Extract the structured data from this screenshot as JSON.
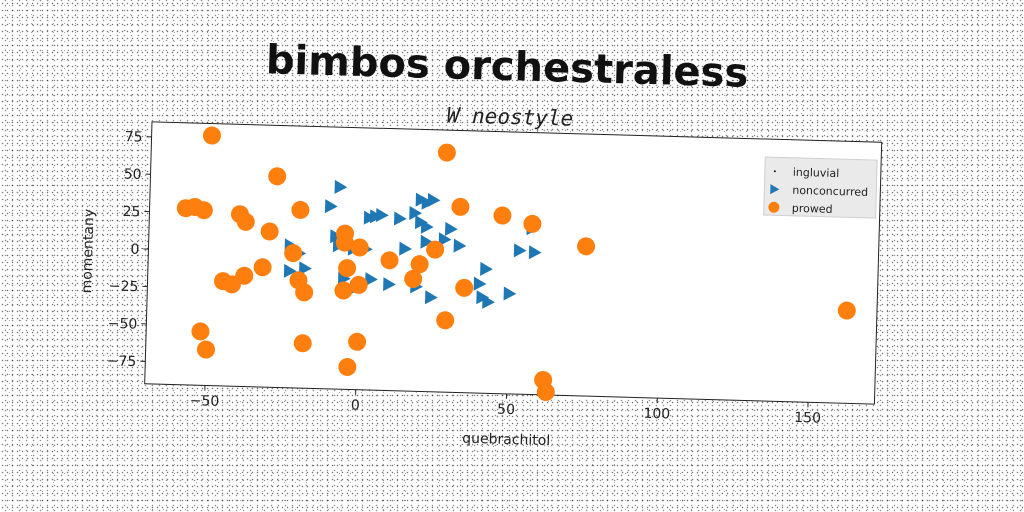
{
  "chart_data": {
    "type": "scatter",
    "title": "bimbos orchestraless",
    "subtitle": "W neostyle",
    "xlabel": "quebrachitol",
    "ylabel": "momentany",
    "xlim": [
      -70,
      172
    ],
    "ylim": [
      -90,
      85
    ],
    "xticks": [
      -50,
      0,
      50,
      100,
      150
    ],
    "yticks": [
      75,
      50,
      25,
      0,
      -25,
      -50,
      -75
    ],
    "grid": false,
    "legend_position": "top-right",
    "series": [
      {
        "name": "ingluvial",
        "marker": "point",
        "color": "#1f1f1f",
        "points": []
      },
      {
        "name": "nonconcurred",
        "marker": "triangle-right",
        "color": "#1f77b4",
        "points": [
          [
            -7,
            45
          ],
          [
            -10,
            32
          ],
          [
            3,
            25
          ],
          [
            5,
            26
          ],
          [
            7,
            27
          ],
          [
            13,
            25
          ],
          [
            18,
            29
          ],
          [
            20,
            38
          ],
          [
            22,
            36
          ],
          [
            24,
            38
          ],
          [
            20,
            23
          ],
          [
            22,
            20
          ],
          [
            30,
            19
          ],
          [
            28,
            12
          ],
          [
            22,
            10
          ],
          [
            15,
            5
          ],
          [
            33,
            8
          ],
          [
            -23,
            5
          ],
          [
            -20,
            0
          ],
          [
            -8,
            12
          ],
          [
            -7,
            6
          ],
          [
            -2,
            4
          ],
          [
            2,
            4
          ],
          [
            -23,
            -12
          ],
          [
            -18,
            -10
          ],
          [
            -5,
            -16
          ],
          [
            4,
            -16
          ],
          [
            -1,
            -22
          ],
          [
            10,
            -19
          ],
          [
            19,
            -20
          ],
          [
            24,
            -27
          ],
          [
            42,
            -7
          ],
          [
            40,
            -17
          ],
          [
            41,
            -26
          ],
          [
            43,
            -29
          ],
          [
            50,
            -23
          ],
          [
            53,
            6
          ],
          [
            58,
            5
          ],
          [
            57,
            21
          ]
        ]
      },
      {
        "name": "prowed",
        "marker": "circle",
        "color": "#ff7f0e",
        "points": [
          [
            -50,
            77
          ],
          [
            -55,
            29
          ],
          [
            -58,
            28
          ],
          [
            -52,
            27
          ],
          [
            -40,
            25
          ],
          [
            -38,
            20
          ],
          [
            -28,
            51
          ],
          [
            -20,
            29
          ],
          [
            -30,
            14
          ],
          [
            -22,
            0
          ],
          [
            -5,
            14
          ],
          [
            -5,
            8
          ],
          [
            0,
            5
          ],
          [
            10,
            -3
          ],
          [
            20,
            -5
          ],
          [
            25,
            5
          ],
          [
            33,
            34
          ],
          [
            28,
            70
          ],
          [
            47,
            29
          ],
          [
            57,
            24
          ],
          [
            75,
            10
          ],
          [
            -45,
            -20
          ],
          [
            -42,
            -22
          ],
          [
            -38,
            -16
          ],
          [
            -32,
            -10
          ],
          [
            -20,
            -18
          ],
          [
            -18,
            -26
          ],
          [
            -5,
            -24
          ],
          [
            -4,
            -9
          ],
          [
            0,
            -20
          ],
          [
            18,
            -15
          ],
          [
            35,
            -20
          ],
          [
            29,
            -42
          ],
          [
            -52,
            -54
          ],
          [
            -50,
            -66
          ],
          [
            -18,
            -60
          ],
          [
            0,
            -58
          ],
          [
            -3,
            -75
          ],
          [
            62,
            -80
          ],
          [
            63,
            -88
          ],
          [
            162,
            -28
          ]
        ]
      }
    ]
  }
}
